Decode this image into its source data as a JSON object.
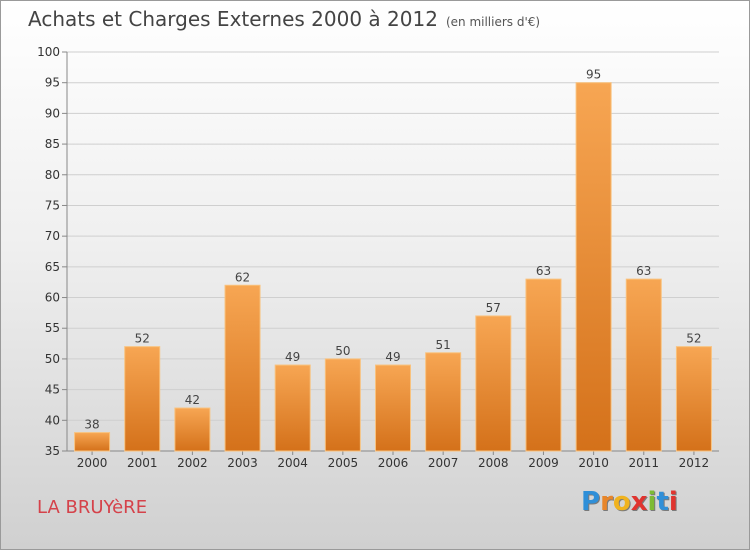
{
  "header": {
    "title": "Achats et Charges Externes 2000 à 2012",
    "subtitle": "(en milliers d'€)"
  },
  "footer": {
    "commune": "LA BRUYèRE",
    "logo": {
      "letters": [
        "P",
        "r",
        "o",
        "x",
        "i",
        "t",
        "i"
      ],
      "colors": [
        "#2f8fd8",
        "#e8862a",
        "#f0b31f",
        "#e0342f",
        "#7dbb35",
        "#2f8fd8",
        "#e0342f"
      ]
    }
  },
  "chart_data": {
    "type": "bar",
    "categories": [
      "2000",
      "2001",
      "2002",
      "2003",
      "2004",
      "2005",
      "2006",
      "2007",
      "2008",
      "2009",
      "2010",
      "2011",
      "2012"
    ],
    "values": [
      38,
      52,
      42,
      62,
      49,
      50,
      49,
      51,
      57,
      63,
      95,
      63,
      52
    ],
    "ylim": [
      35,
      100
    ],
    "yticks": [
      35,
      40,
      45,
      50,
      55,
      60,
      65,
      70,
      75,
      80,
      85,
      90,
      95,
      100
    ],
    "grid": true,
    "bar_color": "#e8862a",
    "data_labels": true
  }
}
